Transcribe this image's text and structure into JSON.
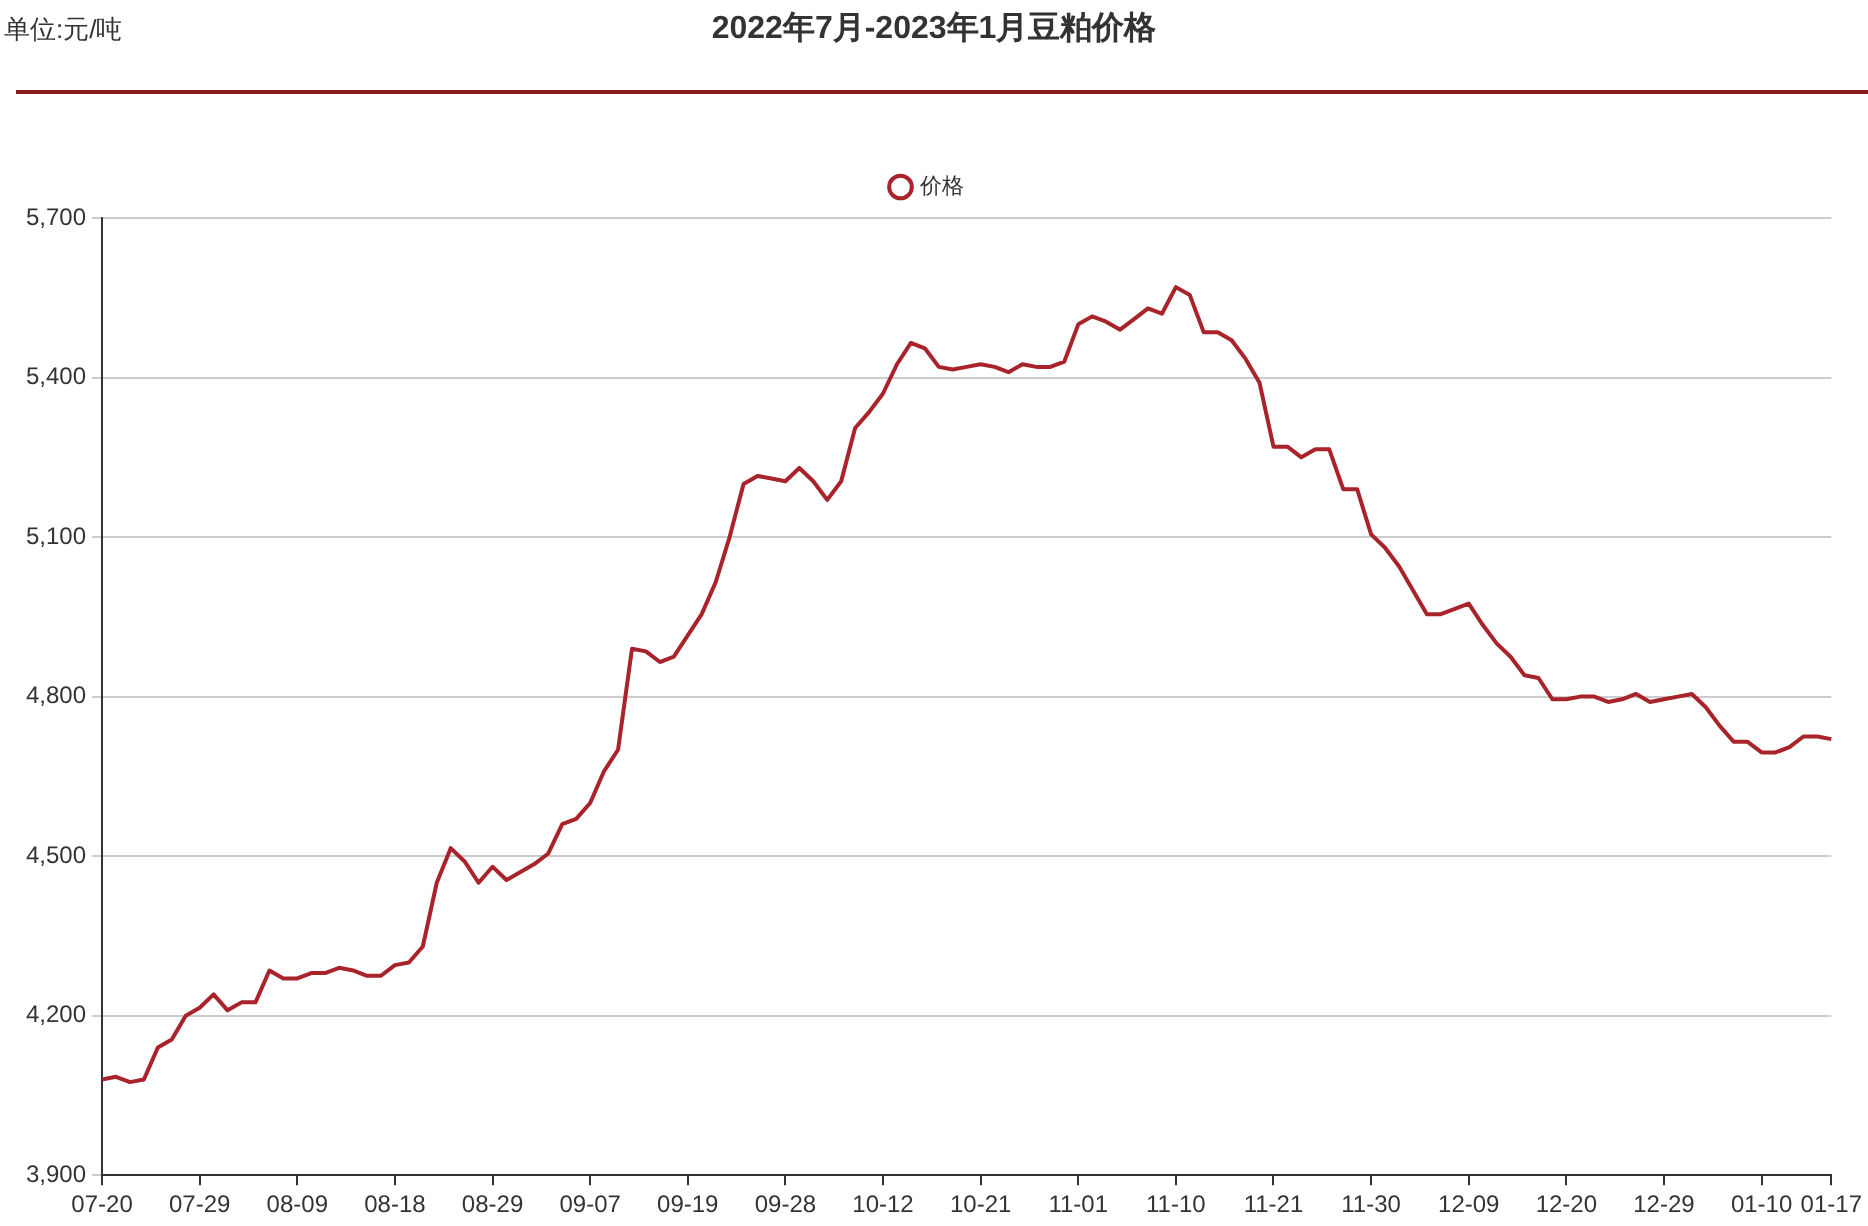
{
  "chart_data": {
    "type": "line",
    "title": "2022年7月-2023年1月豆粕价格",
    "annotations": [
      "单位:元/吨"
    ],
    "categories": [
      "07-20",
      null,
      null,
      null,
      null,
      null,
      null,
      "07-29",
      null,
      null,
      null,
      null,
      null,
      null,
      "08-09",
      null,
      null,
      null,
      null,
      null,
      null,
      "08-18",
      null,
      null,
      null,
      null,
      null,
      null,
      "08-29",
      null,
      null,
      null,
      null,
      null,
      null,
      "09-07",
      null,
      null,
      null,
      null,
      null,
      null,
      "09-19",
      null,
      null,
      null,
      null,
      null,
      null,
      "09-28",
      null,
      null,
      null,
      null,
      null,
      null,
      "10-12",
      null,
      null,
      null,
      null,
      null,
      null,
      "10-21",
      null,
      null,
      null,
      null,
      null,
      null,
      "11-01",
      null,
      null,
      null,
      null,
      null,
      null,
      "11-10",
      null,
      null,
      null,
      null,
      null,
      null,
      "11-21",
      null,
      null,
      null,
      null,
      null,
      null,
      "11-30",
      null,
      null,
      null,
      null,
      null,
      null,
      "12-09",
      null,
      null,
      null,
      null,
      null,
      null,
      "12-20",
      null,
      null,
      null,
      null,
      null,
      null,
      "12-29",
      null,
      null,
      null,
      null,
      null,
      null,
      "01-10",
      null,
      null,
      null,
      null,
      "01-17"
    ],
    "series": [
      {
        "name": "价格",
        "color": "#a8232a",
        "values": [
          4080,
          4085,
          4075,
          4080,
          4140,
          4155,
          4200,
          4215,
          4240,
          4210,
          4225,
          4225,
          4285,
          4270,
          4270,
          4280,
          4280,
          4290,
          4285,
          4275,
          4275,
          4295,
          4300,
          4330,
          4450,
          4515,
          4490,
          4450,
          4480,
          4455,
          4470,
          4485,
          4505,
          4560,
          4570,
          4600,
          4660,
          4700,
          4890,
          4885,
          4865,
          4875,
          4915,
          4955,
          5015,
          5100,
          5200,
          5215,
          5210,
          5205,
          5230,
          5205,
          5170,
          5205,
          5305,
          5335,
          5370,
          5425,
          5465,
          5455,
          5420,
          5415,
          5420,
          5425,
          5420,
          5410,
          5425,
          5420,
          5420,
          5430,
          5500,
          5515,
          5505,
          5490,
          5510,
          5530,
          5520,
          5570,
          5555,
          5485,
          5485,
          5470,
          5435,
          5390,
          5270,
          5270,
          5250,
          5265,
          5265,
          5190,
          5190,
          5105,
          5080,
          5045,
          5000,
          4955,
          4955,
          4965,
          4975,
          4935,
          4900,
          4875,
          4840,
          4835,
          4795,
          4795,
          4800,
          4800,
          4790,
          4795,
          4805,
          4790,
          4795,
          4800,
          4805,
          4780,
          4745,
          4715,
          4715,
          4695,
          4695,
          4705,
          4725,
          4725,
          4720
        ]
      }
    ],
    "ylim": [
      3900,
      5700
    ],
    "yticks": [
      {
        "value": 3900,
        "label": "3,900"
      },
      {
        "value": 4200,
        "label": "4,200"
      },
      {
        "value": 4500,
        "label": "4,500"
      },
      {
        "value": 4800,
        "label": "4,800"
      },
      {
        "value": 5100,
        "label": "5,100"
      },
      {
        "value": 5400,
        "label": "5,400"
      },
      {
        "value": 5700,
        "label": "5,700"
      }
    ],
    "grid": "y",
    "legend": "top",
    "marker": "none",
    "line_style": "solid"
  }
}
